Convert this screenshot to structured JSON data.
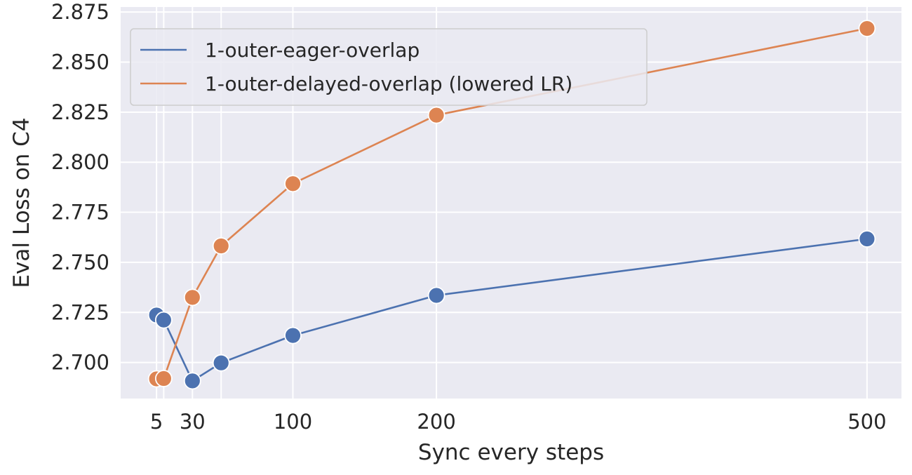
{
  "chart_data": {
    "type": "line",
    "xlabel": "Sync every steps",
    "ylabel": "Eval Loss on C4",
    "x_ticks": [
      5,
      30,
      100,
      200,
      500
    ],
    "y_ticks": [
      "2.700",
      "2.725",
      "2.750",
      "2.775",
      "2.800",
      "2.825",
      "2.850",
      "2.875"
    ],
    "xlim": [
      -20,
      524
    ],
    "ylim": [
      2.682,
      2.8775
    ],
    "grid": true,
    "legend_position": "top-left",
    "series": [
      {
        "name": "1-outer-eager-overlap",
        "color": "#4c72b0",
        "x": [
          5,
          10,
          30,
          50,
          100,
          200,
          500
        ],
        "y": [
          2.7237,
          2.7212,
          2.6908,
          2.6998,
          2.7135,
          2.7335,
          2.7617
        ]
      },
      {
        "name": "1-outer-delayed-overlap (lowered LR)",
        "color": "#dd8452",
        "x": [
          5,
          10,
          30,
          50,
          100,
          200,
          500
        ],
        "y": [
          2.6918,
          2.692,
          2.7325,
          2.7582,
          2.7893,
          2.8235,
          2.8668
        ]
      }
    ]
  }
}
